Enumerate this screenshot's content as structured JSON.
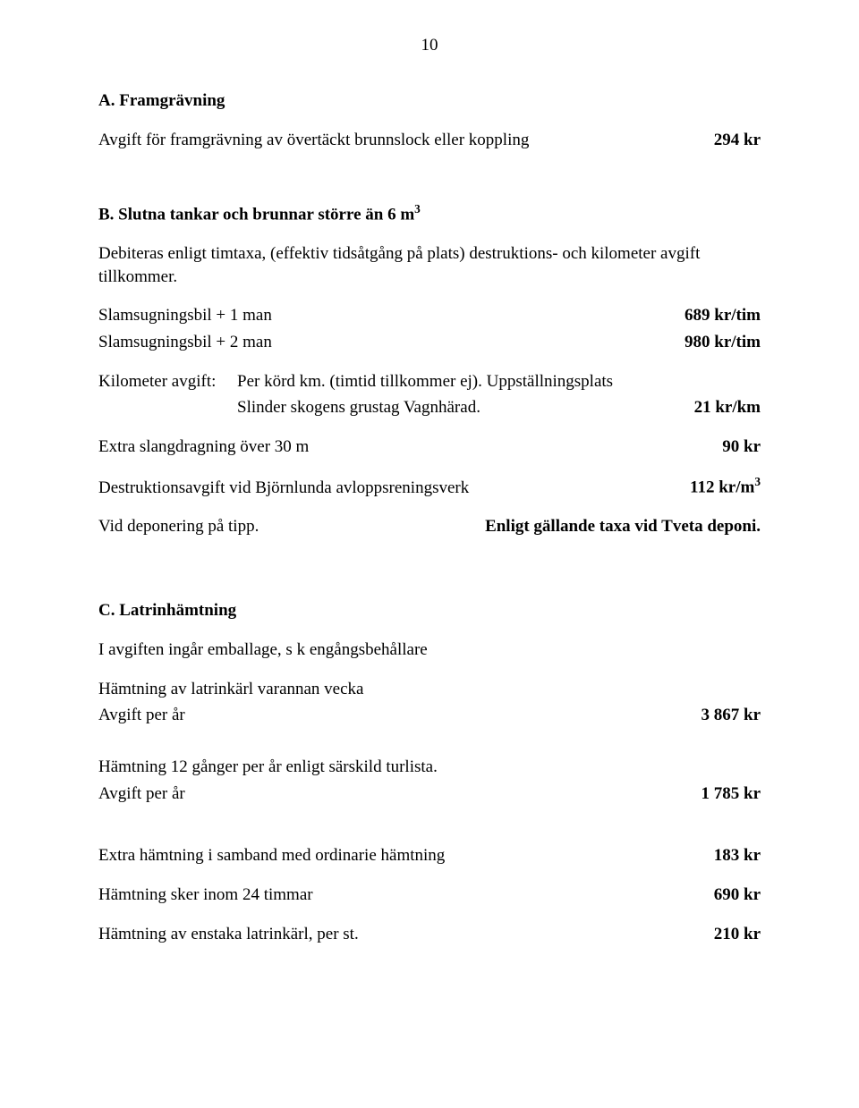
{
  "page_number": "10",
  "sectionA": {
    "heading": "A.  Framgrävning",
    "line1_label": "Avgift för framgrävning av övertäckt brunnslock eller koppling",
    "line1_value": "294 kr"
  },
  "sectionB": {
    "heading_prefix": "B.  Slutna tankar och brunnar större än 6 m",
    "heading_sup": "3",
    "intro": "Debiteras enligt timtaxa, (effektiv tidsåtgång på plats) destruktions- och kilometer avgift tillkommer.",
    "bil1_label": "Slamsugningsbil + 1 man",
    "bil1_value": "689 kr/tim",
    "bil2_label": "Slamsugningsbil + 2 man",
    "bil2_value": "980 kr/tim",
    "km_colA": "Kilometer avgift:",
    "km_line1": "Per körd km. (timtid tillkommer ej). Uppställningsplats",
    "km_line2": "Slinder skogens grustag Vagnhärad.",
    "km_value": "21 kr/km",
    "extra_label": "Extra slangdragning över 30 m",
    "extra_value": "90 kr",
    "destr_label": "Destruktionsavgift vid Björnlunda avloppsreningsverk",
    "destr_value_prefix": "112 kr/m",
    "destr_value_sup": "3",
    "dep_label": "Vid deponering på tipp.",
    "dep_value": "Enligt gällande taxa vid Tveta deponi."
  },
  "sectionC": {
    "heading": "C.  Latrinhämtning",
    "intro": "I avgiften ingår emballage, s k engångsbehållare",
    "h1_label": "Hämtning av latrinkärl varannan vecka",
    "h1_sub_label": "Avgift per år",
    "h1_value": "3 867 kr",
    "h2_label": "Hämtning 12 gånger per år enligt särskild turlista.",
    "h2_sub_label": "Avgift per år",
    "h2_value": "1 785 kr",
    "e1_label": "Extra hämtning i samband med ordinarie hämtning",
    "e1_value": "183 kr",
    "e2_label": "Hämtning sker inom 24 timmar",
    "e2_value": "690 kr",
    "e3_label": "Hämtning av enstaka latrinkärl, per st.",
    "e3_value": "210 kr"
  }
}
